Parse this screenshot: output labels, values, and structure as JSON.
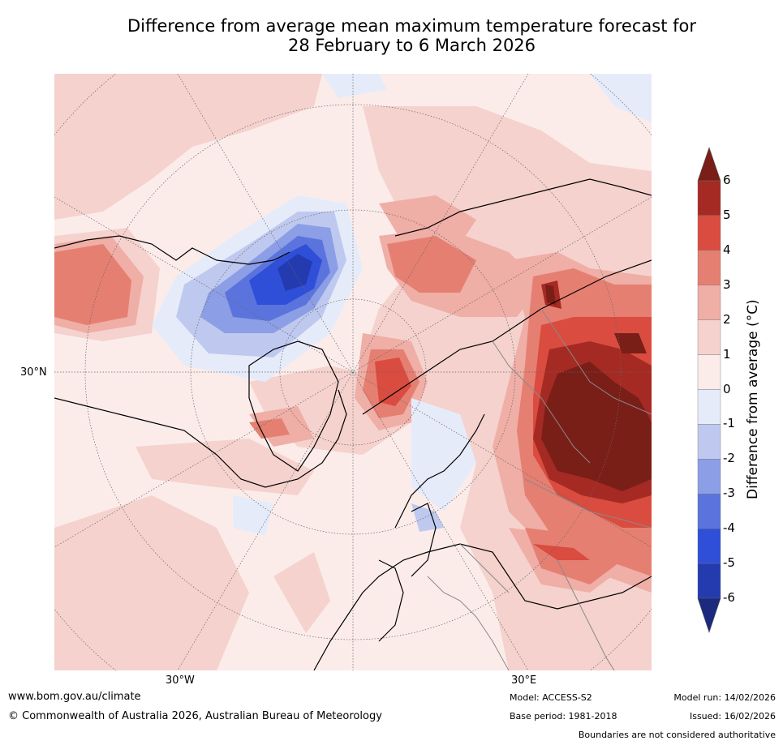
{
  "title_line1": "Difference from average mean maximum temperature forecast for",
  "title_line2": "28 February to 6 March 2026",
  "map": {
    "lat_label": "30°N",
    "lon_labels": [
      "30°W",
      "30°E"
    ]
  },
  "colorbar": {
    "title": "Difference from average (°C)",
    "ticks": [
      "6",
      "5",
      "4",
      "3",
      "2",
      "1",
      "0",
      "-1",
      "-2",
      "-3",
      "-4",
      "-5",
      "-6"
    ],
    "colors_warm": [
      "#7a1e18",
      "#a52a23",
      "#d94c3f",
      "#e57f72",
      "#efaea6",
      "#f5d2cd",
      "#fbecea"
    ],
    "colors_cool": [
      "#e6ebfa",
      "#bfc9ef",
      "#8c9ee6",
      "#5b74dd",
      "#2f4fd9",
      "#243bb0",
      "#1b2a7e"
    ]
  },
  "footer": {
    "website": "www.bom.gov.au/climate",
    "copyright": "© Commonwealth of Australia 2026, Australian Bureau of Meteorology",
    "model": "Model: ACCESS-S2",
    "base_period": "Base period: 1981-2018",
    "model_run": "Model run: 14/02/2026",
    "issued": "Issued: 16/02/2026",
    "disclaimer": "Boundaries are not considered authoritative"
  }
}
